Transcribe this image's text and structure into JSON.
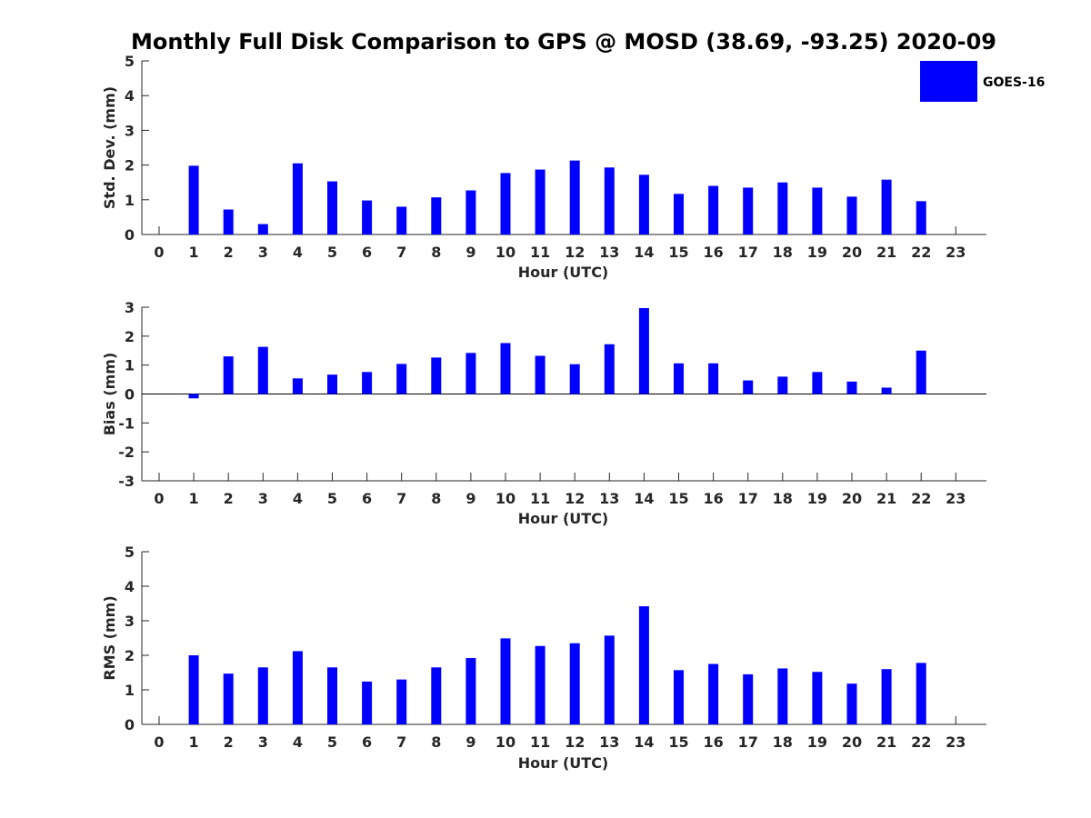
{
  "title": "Monthly Full Disk Comparison to GPS @ MOSD (38.69, -93.25) 2020-09",
  "colors": {
    "bar": "#0000ff",
    "axis": "#262626"
  },
  "legend": {
    "label": "GOES-16",
    "placement": "top-right"
  },
  "chart_data": [
    {
      "type": "bar",
      "title": "",
      "xlabel": "Hour (UTC)",
      "ylabel": "Std. Dev. (mm)",
      "ylim": [
        0,
        5
      ],
      "yticks": [
        0,
        1,
        2,
        3,
        4,
        5
      ],
      "categories": [
        "0",
        "1",
        "2",
        "3",
        "4",
        "5",
        "6",
        "7",
        "8",
        "9",
        "10",
        "11",
        "12",
        "13",
        "14",
        "15",
        "16",
        "17",
        "18",
        "19",
        "20",
        "21",
        "22",
        "23"
      ],
      "series": [
        {
          "name": "GOES-16",
          "values": [
            null,
            1.98,
            0.72,
            0.3,
            2.05,
            1.53,
            0.98,
            0.8,
            1.07,
            1.27,
            1.77,
            1.87,
            2.13,
            1.93,
            1.72,
            1.17,
            1.4,
            1.35,
            1.5,
            1.35,
            1.09,
            1.58,
            0.96,
            null
          ]
        }
      ]
    },
    {
      "type": "bar",
      "title": "",
      "xlabel": "Hour (UTC)",
      "ylabel": "Bias (mm)",
      "ylim": [
        -3,
        3
      ],
      "yticks": [
        -3,
        -2,
        -1,
        0,
        1,
        2,
        3
      ],
      "categories": [
        "0",
        "1",
        "2",
        "3",
        "4",
        "5",
        "6",
        "7",
        "8",
        "9",
        "10",
        "11",
        "12",
        "13",
        "14",
        "15",
        "16",
        "17",
        "18",
        "19",
        "20",
        "21",
        "22",
        "23"
      ],
      "series": [
        {
          "name": "GOES-16",
          "values": [
            null,
            -0.15,
            1.3,
            1.63,
            0.54,
            0.67,
            0.76,
            1.04,
            1.26,
            1.42,
            1.76,
            1.32,
            1.03,
            1.72,
            2.97,
            1.06,
            1.06,
            0.47,
            0.6,
            0.76,
            0.43,
            0.22,
            1.5,
            null
          ]
        }
      ]
    },
    {
      "type": "bar",
      "title": "",
      "xlabel": "Hour (UTC)",
      "ylabel": "RMS (mm)",
      "ylim": [
        0,
        5
      ],
      "yticks": [
        0,
        1,
        2,
        3,
        4,
        5
      ],
      "categories": [
        "0",
        "1",
        "2",
        "3",
        "4",
        "5",
        "6",
        "7",
        "8",
        "9",
        "10",
        "11",
        "12",
        "13",
        "14",
        "15",
        "16",
        "17",
        "18",
        "19",
        "20",
        "21",
        "22",
        "23"
      ],
      "series": [
        {
          "name": "GOES-16",
          "values": [
            null,
            2.0,
            1.47,
            1.65,
            2.12,
            1.65,
            1.24,
            1.3,
            1.65,
            1.92,
            2.49,
            2.27,
            2.35,
            2.57,
            3.42,
            1.57,
            1.75,
            1.45,
            1.62,
            1.52,
            1.18,
            1.6,
            1.78,
            null
          ]
        }
      ]
    }
  ]
}
